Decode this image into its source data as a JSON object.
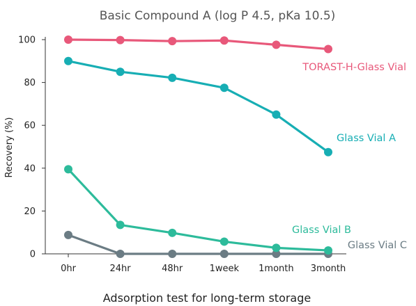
{
  "chart_data": {
    "type": "line",
    "title": "Basic Compound A (log P 4.5, pKa 10.5)",
    "xlabel": "Adsorption test for long-term storage",
    "ylabel": "Recovery (%)",
    "categories": [
      "0hr",
      "24hr",
      "48hr",
      "1week",
      "1month",
      "3month"
    ],
    "yticks": [
      0,
      20,
      40,
      60,
      80,
      100
    ],
    "ylim": [
      0,
      100
    ],
    "grid": false,
    "legend": "inline labels at right",
    "series": [
      {
        "name": "TORAST-H-Glass Vial",
        "color": "#e8587a",
        "values": [
          100,
          99.8,
          99.3,
          99.6,
          97.6,
          95.6
        ]
      },
      {
        "name": "Glass Vial A",
        "color": "#17aeb4",
        "values": [
          90,
          85,
          82.2,
          77.5,
          65,
          47.5
        ]
      },
      {
        "name": "Glass Vial B",
        "color": "#2dbb9b",
        "values": [
          39.5,
          13.5,
          9.8,
          5.7,
          2.8,
          1.6
        ]
      },
      {
        "name": "Glass Vial C",
        "color": "#6b7c84",
        "values": [
          8.8,
          0,
          0,
          0,
          0,
          0
        ]
      }
    ]
  }
}
